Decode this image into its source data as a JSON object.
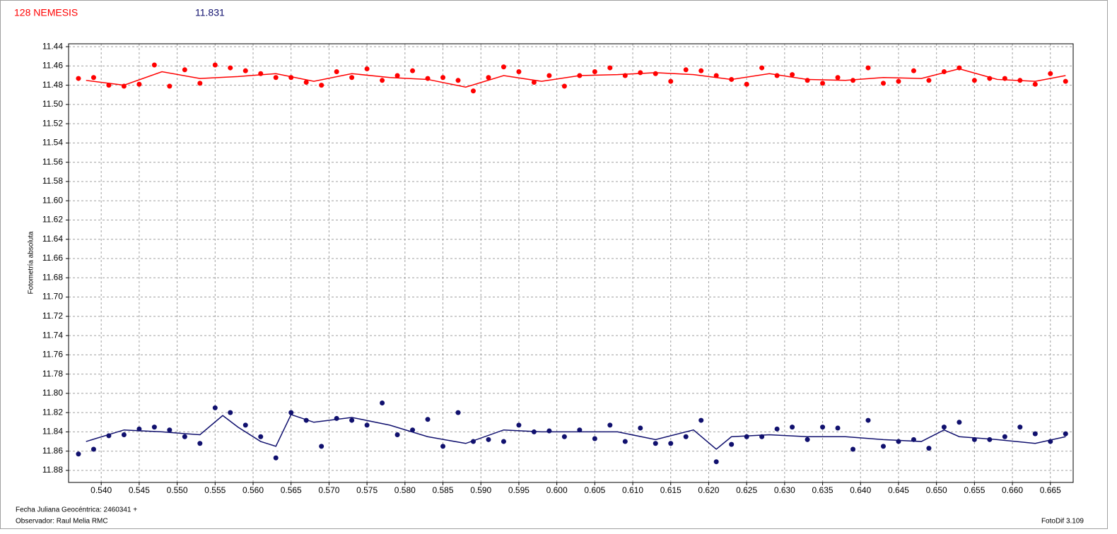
{
  "chart_data": {
    "type": "scatter",
    "title": "128 NEMESIS",
    "subtitle": "11.831",
    "y_label": "Fotometría absoluta",
    "footer_lines": [
      "Fecha Juliana Geocéntrica: 2460341 +",
      "Observador: Raul Melia RMC"
    ],
    "footer_right": "FotoDif 3.109",
    "grid": true,
    "xlim": [
      0.5357,
      0.668
    ],
    "ylim": [
      11.8925,
      11.437
    ],
    "xticks": [
      {
        "value": 0.54,
        "label": "0.540"
      },
      {
        "value": 0.545,
        "label": "0.545"
      },
      {
        "value": 0.55,
        "label": "0.550"
      },
      {
        "value": 0.555,
        "label": "0.555"
      },
      {
        "value": 0.56,
        "label": "0.560"
      },
      {
        "value": 0.565,
        "label": "0.565"
      },
      {
        "value": 0.57,
        "label": "0.570"
      },
      {
        "value": 0.575,
        "label": "0.575"
      },
      {
        "value": 0.58,
        "label": "0.580"
      },
      {
        "value": 0.585,
        "label": "0.585"
      },
      {
        "value": 0.59,
        "label": "0.590"
      },
      {
        "value": 0.595,
        "label": "0.595"
      },
      {
        "value": 0.6,
        "label": "0.600"
      },
      {
        "value": 0.605,
        "label": "0.605"
      },
      {
        "value": 0.61,
        "label": "0.610"
      },
      {
        "value": 0.615,
        "label": "0.615"
      },
      {
        "value": 0.62,
        "label": "0.620"
      },
      {
        "value": 0.625,
        "label": "0.625"
      },
      {
        "value": 0.63,
        "label": "0.630"
      },
      {
        "value": 0.635,
        "label": "0.635"
      },
      {
        "value": 0.64,
        "label": "0.640"
      },
      {
        "value": 0.645,
        "label": "0.645"
      },
      {
        "value": 0.65,
        "label": "0.650"
      },
      {
        "value": 0.655,
        "label": "0.655"
      },
      {
        "value": 0.66,
        "label": "0.660"
      },
      {
        "value": 0.665,
        "label": "0.665"
      }
    ],
    "yticks": [
      11.44,
      11.46,
      11.48,
      {
        "value": 11.5,
        "label": "11.50"
      },
      11.52,
      11.54,
      11.56,
      11.58,
      {
        "value": 11.6,
        "label": "11.60"
      },
      11.62,
      11.64,
      11.66,
      11.68,
      {
        "value": 11.7,
        "label": "11.70"
      },
      11.72,
      11.74,
      11.76,
      11.78,
      {
        "value": 11.8,
        "label": "11.80"
      },
      11.82,
      11.84,
      11.86,
      11.88
    ],
    "x": [
      0.537,
      0.539,
      0.541,
      0.543,
      0.545,
      0.547,
      0.549,
      0.551,
      0.553,
      0.555,
      0.557,
      0.559,
      0.561,
      0.563,
      0.565,
      0.567,
      0.569,
      0.571,
      0.573,
      0.575,
      0.577,
      0.579,
      0.581,
      0.583,
      0.585,
      0.587,
      0.589,
      0.591,
      0.593,
      0.595,
      0.597,
      0.599,
      0.601,
      0.603,
      0.605,
      0.607,
      0.609,
      0.611,
      0.613,
      0.615,
      0.617,
      0.619,
      0.621,
      0.623,
      0.625,
      0.627,
      0.629,
      0.631,
      0.633,
      0.635,
      0.637,
      0.639,
      0.641,
      0.643,
      0.645,
      0.647,
      0.649,
      0.651,
      0.653,
      0.655,
      0.657,
      0.659,
      0.661,
      0.663,
      0.665,
      0.667
    ],
    "series": [
      {
        "kind": "points",
        "color": "#ff0000",
        "values": [
          11.473,
          11.472,
          11.48,
          11.481,
          11.479,
          11.459,
          11.481,
          11.464,
          11.478,
          11.459,
          11.462,
          11.465,
          11.468,
          11.472,
          11.472,
          11.477,
          11.48,
          11.466,
          11.472,
          11.463,
          11.475,
          11.47,
          11.465,
          11.473,
          11.472,
          11.475,
          11.486,
          11.472,
          11.461,
          11.466,
          11.477,
          11.47,
          11.481,
          11.47,
          11.466,
          11.462,
          11.47,
          11.467,
          11.468,
          11.476,
          11.464,
          11.465,
          11.47,
          11.474,
          11.479,
          11.462,
          11.47,
          11.469,
          11.475,
          11.478,
          11.472,
          11.475,
          11.462,
          11.478,
          11.476,
          11.465,
          11.475,
          11.466,
          11.462,
          11.475,
          11.473,
          11.473,
          11.475,
          11.479,
          11.468,
          11.476
        ]
      },
      {
        "kind": "points",
        "color": "#10106e",
        "values": [
          11.863,
          11.858,
          11.844,
          11.843,
          11.837,
          11.835,
          11.838,
          11.845,
          11.852,
          11.815,
          11.82,
          11.833,
          11.845,
          11.867,
          11.82,
          11.828,
          11.855,
          11.826,
          11.828,
          11.833,
          11.81,
          11.843,
          11.838,
          11.827,
          11.855,
          11.82,
          11.85,
          11.848,
          11.85,
          11.833,
          11.84,
          11.839,
          11.845,
          11.838,
          11.847,
          11.833,
          11.85,
          11.836,
          11.852,
          11.852,
          11.845,
          11.828,
          11.871,
          11.853,
          11.845,
          11.845,
          11.837,
          11.835,
          11.848,
          11.835,
          11.836,
          11.858,
          11.828,
          11.855,
          11.85,
          11.848,
          11.857,
          11.835,
          11.83,
          11.848,
          11.848,
          11.845,
          11.835,
          11.842,
          11.85,
          11.842
        ]
      },
      {
        "kind": "line",
        "color": "#ff0000",
        "x": [
          0.538,
          0.543,
          0.548,
          0.553,
          0.558,
          0.563,
          0.568,
          0.573,
          0.578,
          0.583,
          0.588,
          0.593,
          0.598,
          0.603,
          0.608,
          0.613,
          0.618,
          0.623,
          0.628,
          0.633,
          0.638,
          0.643,
          0.648,
          0.653,
          0.658,
          0.663,
          0.667
        ],
        "values": [
          11.475,
          11.48,
          11.466,
          11.473,
          11.471,
          11.468,
          11.476,
          11.468,
          11.472,
          11.474,
          11.482,
          11.47,
          11.476,
          11.47,
          11.469,
          11.467,
          11.469,
          11.474,
          11.468,
          11.474,
          11.475,
          11.472,
          11.473,
          11.463,
          11.474,
          11.476,
          11.47
        ]
      },
      {
        "kind": "line",
        "color": "#10106e",
        "x": [
          0.538,
          0.543,
          0.548,
          0.553,
          0.556,
          0.558,
          0.561,
          0.563,
          0.565,
          0.568,
          0.573,
          0.578,
          0.583,
          0.588,
          0.593,
          0.598,
          0.603,
          0.608,
          0.613,
          0.618,
          0.621,
          0.623,
          0.628,
          0.633,
          0.638,
          0.643,
          0.648,
          0.651,
          0.653,
          0.658,
          0.663,
          0.667
        ],
        "values": [
          11.85,
          11.838,
          11.84,
          11.843,
          11.823,
          11.835,
          11.85,
          11.855,
          11.822,
          11.83,
          11.825,
          11.833,
          11.845,
          11.852,
          11.838,
          11.84,
          11.84,
          11.84,
          11.848,
          11.838,
          11.858,
          11.845,
          11.843,
          11.845,
          11.845,
          11.848,
          11.85,
          11.838,
          11.845,
          11.848,
          11.852,
          11.845
        ]
      }
    ]
  }
}
